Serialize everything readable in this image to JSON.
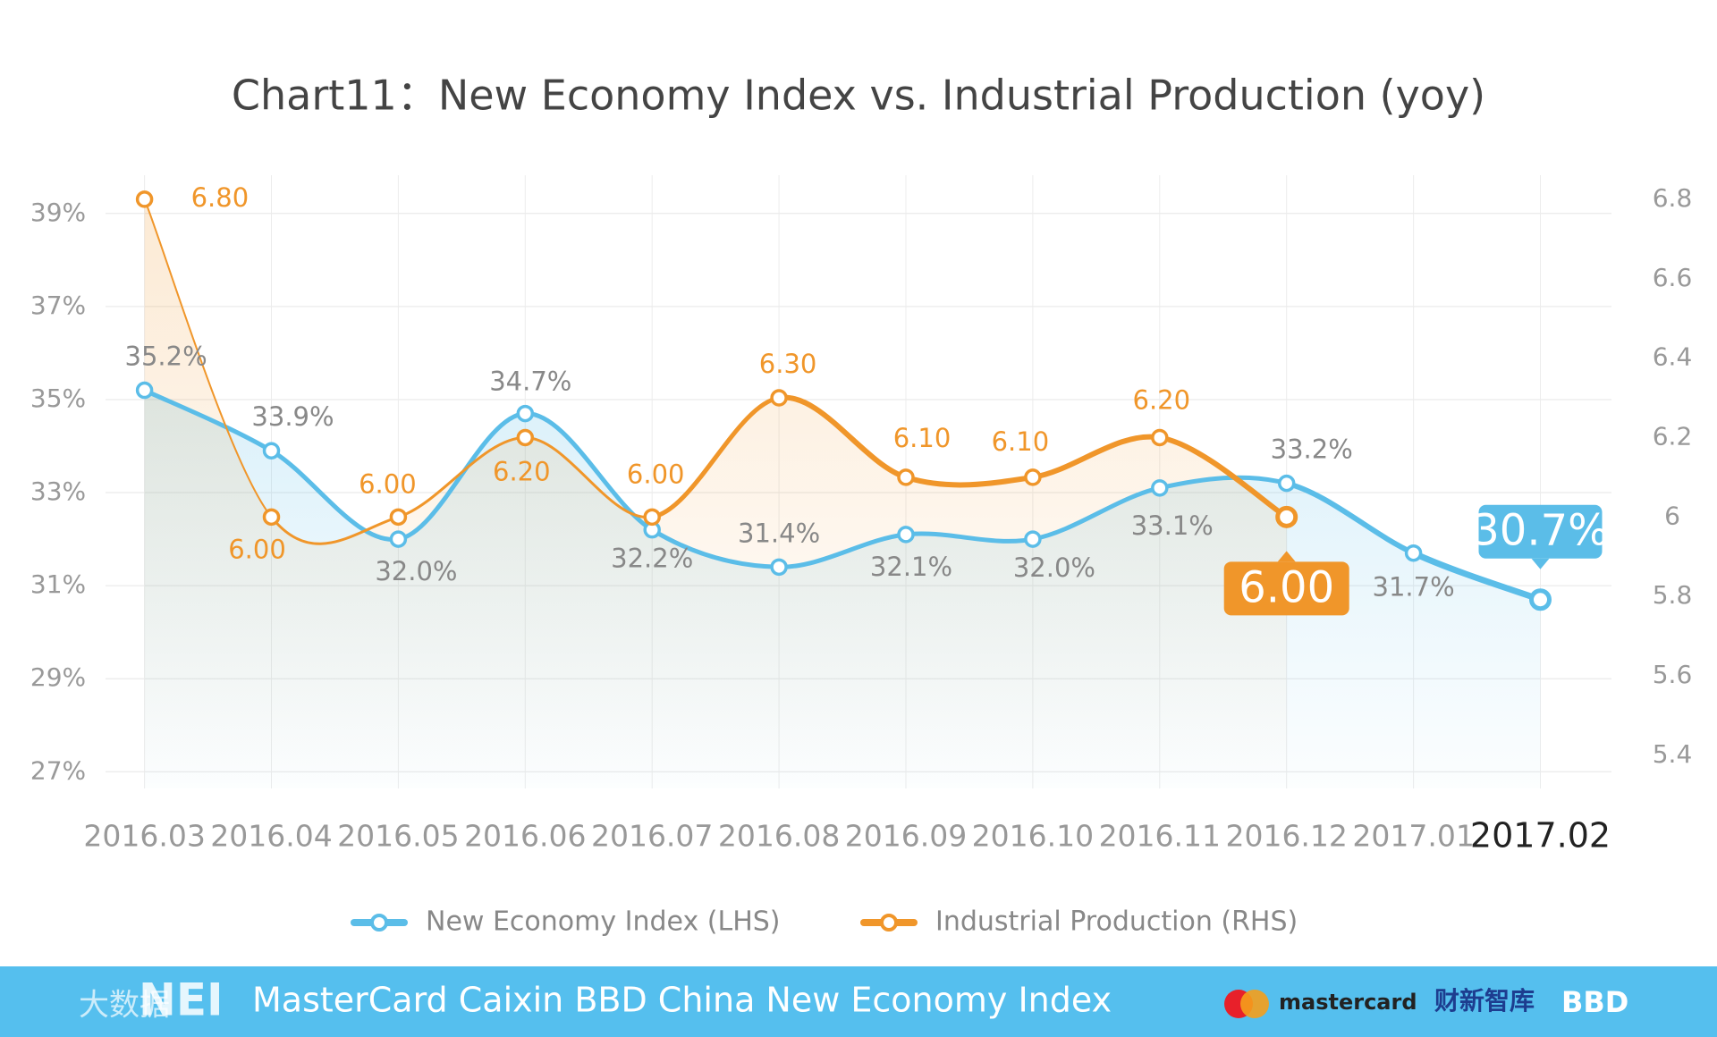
{
  "chart_data": {
    "type": "line",
    "title": "Chart11：New Economy Index vs. Industrial Production (yoy)",
    "categories": [
      "2016.03",
      "2016.04",
      "2016.05",
      "2016.06",
      "2016.07",
      "2016.08",
      "2016.09",
      "2016.10",
      "2016.11",
      "2016.12",
      "2017.01",
      "2017.02"
    ],
    "series": [
      {
        "name": "New Economy Index (LHS)",
        "color": "#5bbde8",
        "axis": "y",
        "values": [
          35.2,
          33.9,
          32.0,
          34.7,
          32.2,
          31.4,
          32.1,
          32.0,
          33.1,
          33.2,
          31.7,
          30.7
        ],
        "value_labels": [
          "35.2%",
          "33.9%",
          "32.0%",
          "34.7%",
          "32.2%",
          "31.4%",
          "32.1%",
          "32.0%",
          "33.1%",
          "33.2%",
          "31.7%",
          "30.7%"
        ]
      },
      {
        "name": "Industrial Production (RHS)",
        "color": "#f0962a",
        "axis": "y2",
        "values": [
          6.8,
          6.0,
          6.0,
          6.2,
          6.0,
          6.3,
          6.1,
          6.1,
          6.2,
          6.0,
          null,
          null
        ],
        "value_labels": [
          "6.80",
          "6.00",
          "6.00",
          "6.20",
          "6.00",
          "6.30",
          "6.10",
          "6.10",
          "6.20",
          "6.00",
          null,
          null
        ]
      }
    ],
    "ylim": [
      27,
      39
    ],
    "yticks": [
      {
        "value": 27,
        "label": "27%"
      },
      {
        "value": 29,
        "label": "29%"
      },
      {
        "value": 31,
        "label": "31%"
      },
      {
        "value": 33,
        "label": "33%"
      },
      {
        "value": 35,
        "label": "35%"
      },
      {
        "value": 37,
        "label": "37%"
      },
      {
        "value": 39,
        "label": "39%"
      }
    ],
    "y2lim": [
      5.4,
      6.8
    ],
    "y2ticks": [
      5.4,
      5.6,
      5.8,
      6,
      6.2,
      6.4,
      6.6,
      6.8
    ],
    "grid": true
  },
  "footer": {
    "text": "MasterCard Caixin BBD China New Economy Index",
    "logo_left": "NEI",
    "logo_left_cn": "大数据",
    "logo_mastercard": "mastercard",
    "logo_caixin": "财新智库",
    "logo_bbd": "BBD"
  }
}
